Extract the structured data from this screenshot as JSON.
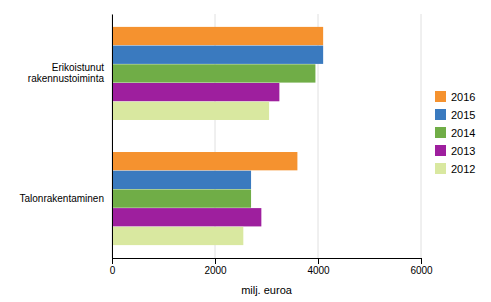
{
  "chart_data": {
    "type": "bar",
    "orientation": "horizontal",
    "categories": [
      "Erikoistunut\nrakennustoiminta",
      "Talonrakentaminen"
    ],
    "series": [
      {
        "name": "2016",
        "color": "#f5922f",
        "values": [
          4100,
          3600
        ]
      },
      {
        "name": "2015",
        "color": "#3a7abf",
        "values": [
          4100,
          2700
        ]
      },
      {
        "name": "2014",
        "color": "#70ad47",
        "values": [
          3950,
          2700
        ]
      },
      {
        "name": "2013",
        "color": "#9e1f9e",
        "values": [
          3250,
          2900
        ]
      },
      {
        "name": "2012",
        "color": "#d9e8a0",
        "values": [
          3050,
          2550
        ]
      }
    ],
    "xlabel": "milj. euroa",
    "xlim": [
      0,
      6000
    ],
    "xticks": [
      0,
      2000,
      4000,
      6000
    ],
    "grid": true,
    "legend": "right"
  }
}
